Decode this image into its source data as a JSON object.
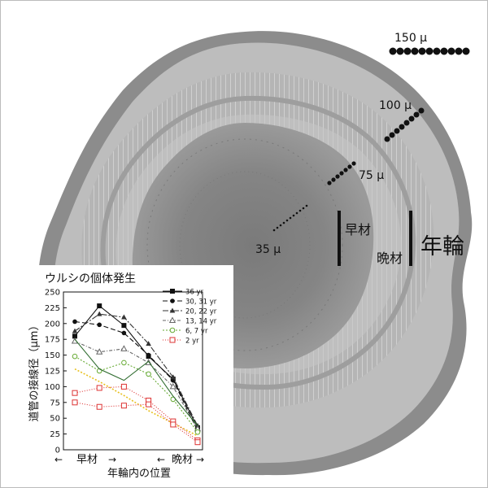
{
  "micrograph": {
    "scale_labels": [
      "150 μ",
      "100 μ",
      "75 μ",
      "35 μ"
    ],
    "zone_labels": {
      "early": "早材",
      "late": "晩材",
      "ring": "年輪"
    }
  },
  "chart_data": {
    "type": "line",
    "title": "ウルシの個体発生",
    "ylabel": "道管の接線径（μm）",
    "xlabel": "年輪内の位置",
    "x_annotation": {
      "early": "早材",
      "late": "晩材"
    },
    "ylim": [
      0,
      250
    ],
    "yticks": [
      0,
      25,
      50,
      75,
      100,
      125,
      150,
      175,
      200,
      225,
      250
    ],
    "x": [
      1,
      2,
      3,
      4,
      5,
      6
    ],
    "series": [
      {
        "name": "36 yr",
        "color": "#111111",
        "dash": "none",
        "marker": "square-filled",
        "values": [
          180,
          228,
          197,
          148,
          112,
          35
        ]
      },
      {
        "name": "30, 31 yr",
        "color": "#111111",
        "dash": "6,3",
        "marker": "circle-filled",
        "values": [
          203,
          198,
          185,
          150,
          110,
          30
        ]
      },
      {
        "name": "20, 22 yr",
        "color": "#333333",
        "dash": "7,2,2,2",
        "marker": "triangle-filled",
        "values": [
          188,
          215,
          210,
          168,
          115,
          38
        ]
      },
      {
        "name": "13, 14 yr",
        "color": "#666666",
        "dash": "4,2,1,2",
        "marker": "triangle-open",
        "values": [
          172,
          155,
          160,
          138,
          100,
          33
        ]
      },
      {
        "name": "6, 7 yr",
        "color": "#66aa33",
        "dash": "2,2",
        "marker": "circle-open",
        "values": [
          148,
          125,
          138,
          120,
          80,
          28
        ]
      },
      {
        "name": "2 yr",
        "color": "#dd3333",
        "dash": "1,2",
        "marker": "square-open",
        "values": [
          90,
          98,
          100,
          78,
          45,
          15
        ]
      },
      {
        "name": "",
        "color": "#2e6b2e",
        "dash": "none",
        "marker": "none",
        "values": [
          175,
          128,
          110,
          140,
          85,
          38
        ]
      },
      {
        "name": "",
        "color": "#dd3333",
        "dash": "1,2",
        "marker": "square-open",
        "values": [
          75,
          68,
          70,
          72,
          40,
          12
        ]
      }
    ],
    "trend_line": {
      "color": "#e8c020",
      "dash": "2,2",
      "values": [
        128,
        108,
        86,
        62,
        42,
        22
      ]
    }
  }
}
